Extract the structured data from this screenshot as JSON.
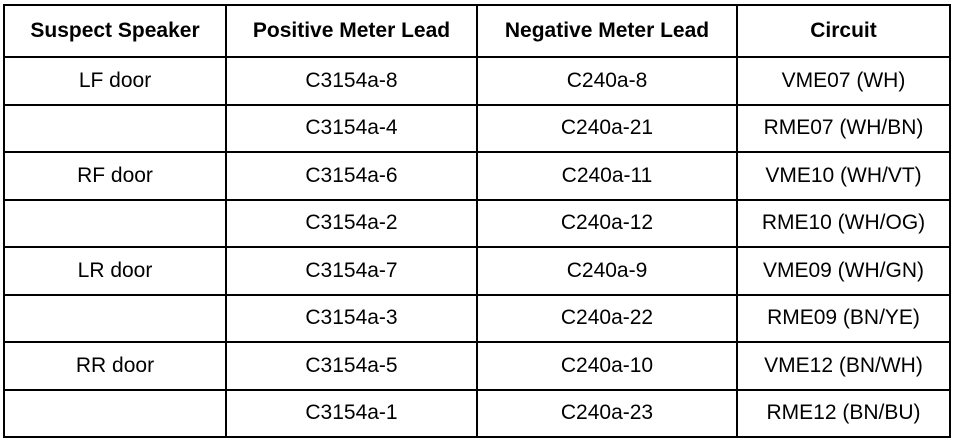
{
  "table": {
    "header": [
      "Suspect Speaker",
      "Positive Meter Lead",
      "Negative Meter Lead",
      "Circuit"
    ],
    "rows": [
      [
        "LF door",
        "C3154a-8",
        "C240a-8",
        "VME07 (WH)"
      ],
      [
        null,
        "C3154a-4",
        "C240a-21",
        "RME07 (WH/BN)"
      ],
      [
        "RF door",
        "C3154a-6",
        "C240a-11",
        "VME10 (WH/VT)"
      ],
      [
        null,
        "C3154a-2",
        "C240a-12",
        "RME10 (WH/OG)"
      ],
      [
        "LR door",
        "C3154a-7",
        "C240a-9",
        "VME09 (WH/GN)"
      ],
      [
        null,
        "C3154a-3",
        "C240a-22",
        "RME09 (BN/YE)"
      ],
      [
        "RR door",
        "C3154a-5",
        "C240a-10",
        "VME12 (BN/WH)"
      ],
      [
        null,
        "C3154a-1",
        "C240a-23",
        "RME12 (BN/BU)"
      ]
    ]
  }
}
